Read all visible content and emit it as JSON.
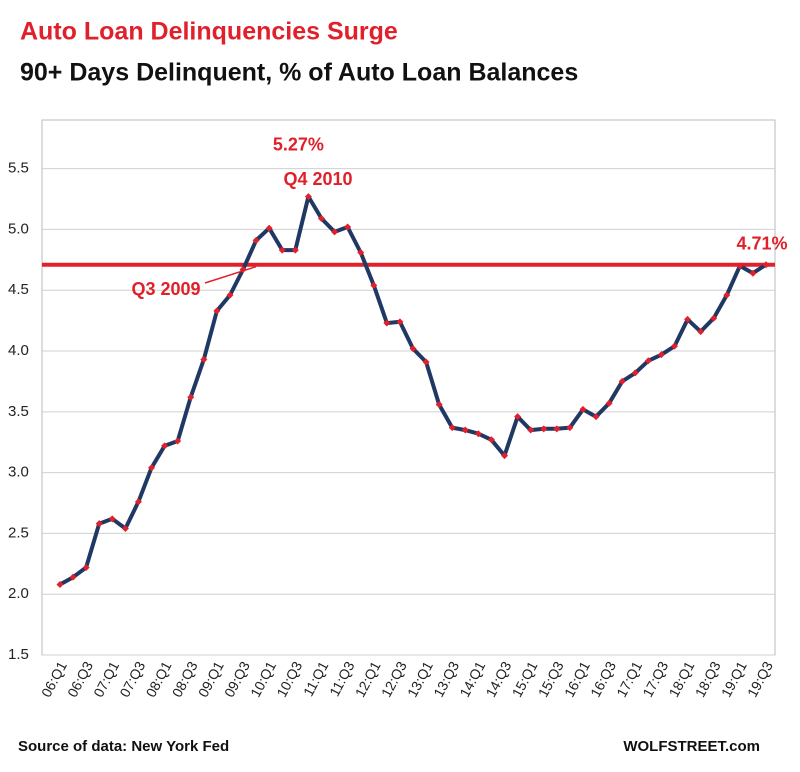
{
  "chart_data": {
    "type": "line",
    "title": "Auto Loan Delinquencies Surge",
    "subtitle": "90+ Days Delinquent, % of Auto Loan  Balances",
    "categories": [
      "06:Q1",
      null,
      "06:Q3",
      null,
      "07:Q1",
      null,
      "07:Q3",
      null,
      "08:Q1",
      null,
      "08:Q3",
      null,
      "09:Q1",
      null,
      "09:Q3",
      null,
      "10:Q1",
      null,
      "10:Q3",
      null,
      "11:Q1",
      null,
      "11:Q3",
      null,
      "12:Q1",
      null,
      "12:Q3",
      null,
      "13:Q1",
      null,
      "13:Q3",
      null,
      "14:Q1",
      null,
      "14:Q3",
      null,
      "15:Q1",
      null,
      "15:Q3",
      null,
      "16:Q1",
      null,
      "16:Q3",
      null,
      "17:Q1",
      null,
      "17:Q3",
      null,
      "18:Q1",
      null,
      "18:Q3",
      null,
      "19:Q1",
      null,
      "19:Q3"
    ],
    "series": [
      {
        "name": "90+ Days Delinquent",
        "color": "#1f3864",
        "marker_color": "#e0202a",
        "values": [
          2.08,
          2.14,
          2.22,
          2.58,
          2.62,
          2.54,
          2.76,
          3.04,
          3.22,
          3.26,
          3.62,
          3.93,
          4.33,
          4.46,
          4.67,
          4.91,
          5.01,
          4.83,
          4.83,
          5.27,
          5.09,
          4.98,
          5.02,
          4.81,
          4.54,
          4.23,
          4.24,
          4.02,
          3.91,
          3.56,
          3.37,
          3.35,
          3.32,
          3.27,
          3.14,
          3.46,
          3.35,
          3.36,
          3.36,
          3.37,
          3.52,
          3.46,
          3.57,
          3.75,
          3.82,
          3.92,
          3.97,
          4.04,
          4.26,
          4.16,
          4.27,
          4.46,
          4.7,
          4.64,
          4.71
        ],
        "value_labels": [
          null,
          null,
          null,
          null,
          null,
          null,
          null,
          null,
          null,
          null,
          null,
          null,
          null,
          null,
          null,
          null,
          null,
          null,
          null,
          "5.27%",
          null,
          null,
          null,
          null,
          null,
          null,
          null,
          null,
          null,
          null,
          null,
          null,
          null,
          null,
          null,
          null,
          null,
          null,
          null,
          null,
          null,
          null,
          null,
          null,
          null,
          null,
          null,
          null,
          null,
          null,
          null,
          null,
          null,
          null,
          "4.71%"
        ]
      }
    ],
    "reference_line": {
      "value": 4.71,
      "color": "#e0202a"
    },
    "annotations": [
      "Q4 2010",
      "Q3 2009"
    ],
    "ylim": [
      1.5,
      5.9
    ],
    "yticks": [
      {
        "value": 1.5,
        "label": "1.5"
      },
      {
        "value": 2,
        "label": "2.0"
      },
      {
        "value": 2.5,
        "label": "2.5"
      },
      {
        "value": 3,
        "label": "3.0"
      },
      {
        "value": 3.5,
        "label": "3.5"
      },
      {
        "value": 4,
        "label": "4.0"
      },
      {
        "value": 4.5,
        "label": "4.5"
      },
      {
        "value": 5,
        "label": "5.0"
      },
      {
        "value": 5.5,
        "label": "5.5"
      }
    ],
    "grid": true,
    "source": "Source of data: New York Fed",
    "credit": "WOLFSTREET.com"
  }
}
